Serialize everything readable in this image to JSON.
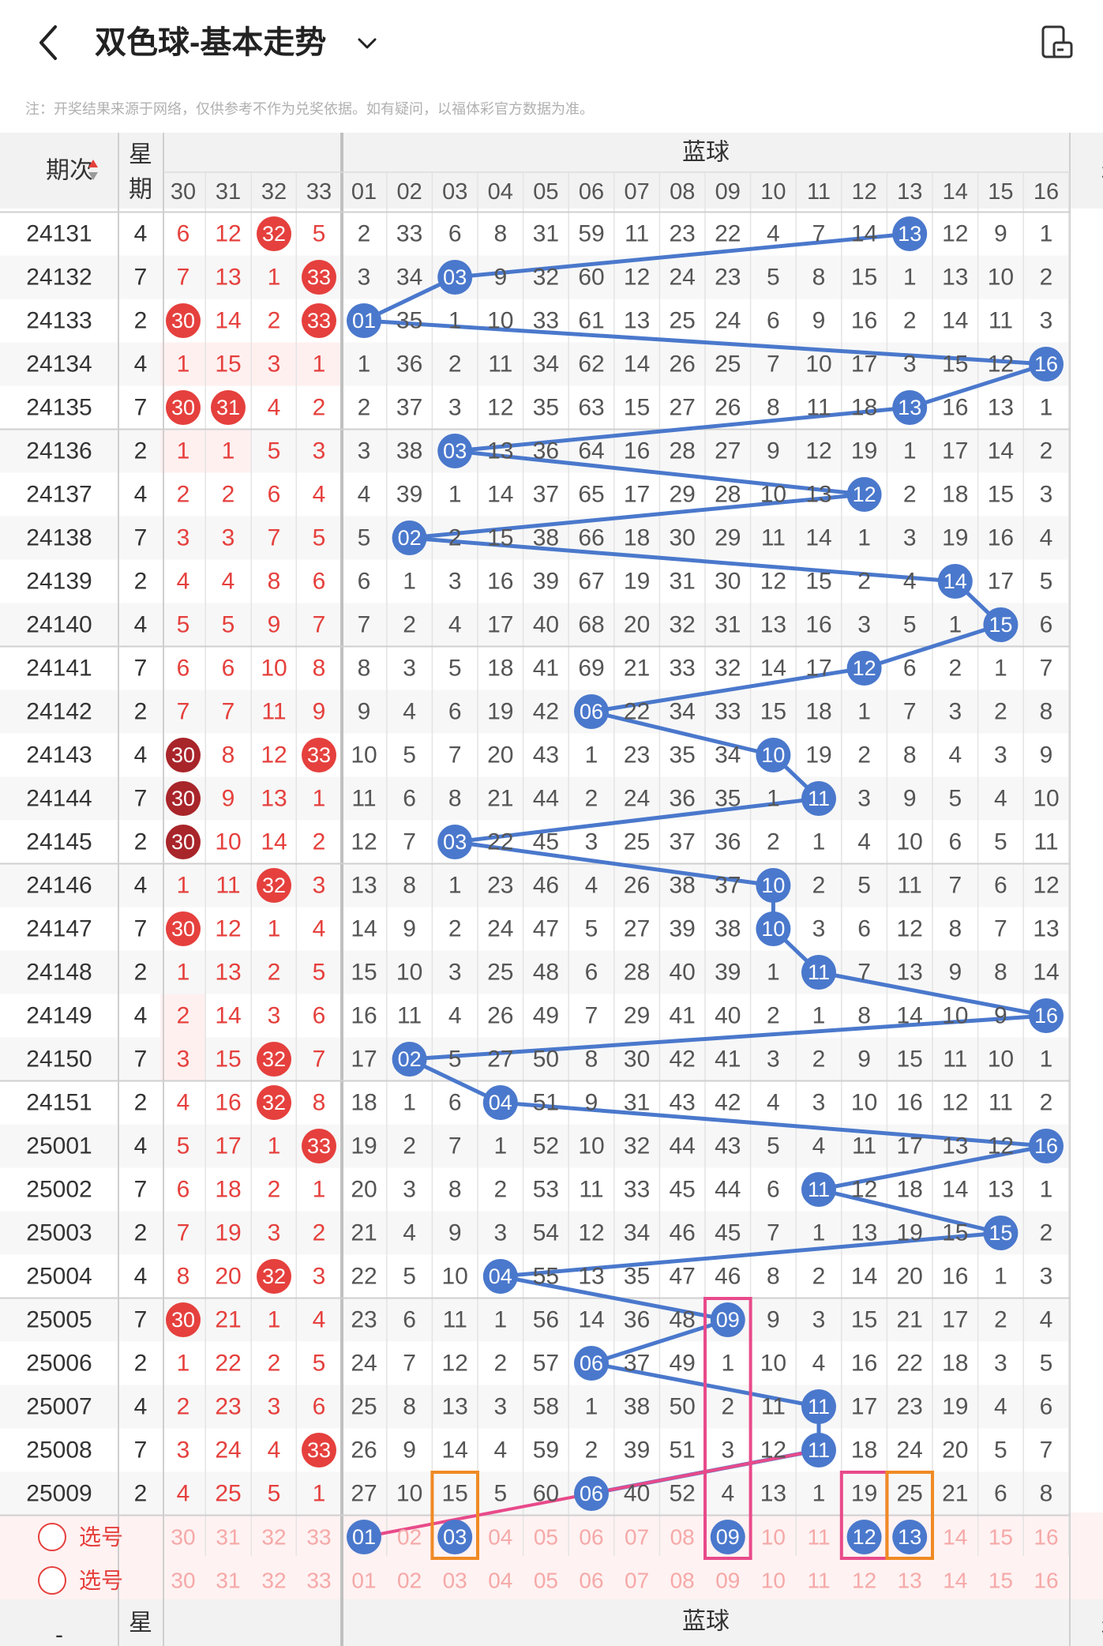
{
  "header": {
    "title": "双色球-基本走势",
    "back_icon": "chevron-left-icon",
    "dropdown_icon": "chevron-down-icon",
    "rotate_icon": "screen-rotate-icon"
  },
  "notice": "注：开奖结果来源于网络，仅供参考不作为兑奖依据。如有疑问，以福体彩官方数据为准。",
  "table": {
    "col_period": "期次",
    "col_week": "星期",
    "blue_section": "蓝球",
    "right_cut": "和",
    "red_cols": [
      "30",
      "31",
      "32",
      "33"
    ],
    "blue_cols": [
      "01",
      "02",
      "03",
      "04",
      "05",
      "06",
      "07",
      "08",
      "09",
      "10",
      "11",
      "12",
      "13",
      "14",
      "15",
      "16"
    ],
    "rows": [
      {
        "p": "24131",
        "w": "4",
        "r": [
          "6",
          "12",
          "32",
          "5"
        ],
        "rh": [
          0,
          0,
          1,
          0
        ],
        "b": [
          "2",
          "33",
          "6",
          "8",
          "31",
          "59",
          "11",
          "23",
          "22",
          "4",
          "7",
          "14",
          "13",
          "12",
          "9",
          "1"
        ],
        "bh": 13,
        "rm": [
          0,
          0,
          0,
          0
        ],
        "e": "1"
      },
      {
        "p": "24132",
        "w": "7",
        "r": [
          "7",
          "13",
          "1",
          "33"
        ],
        "rh": [
          0,
          0,
          0,
          1
        ],
        "b": [
          "3",
          "34",
          "03",
          "9",
          "32",
          "60",
          "12",
          "24",
          "23",
          "5",
          "8",
          "15",
          "1",
          "13",
          "10",
          "2"
        ],
        "bh": 3,
        "rm": [
          0,
          0,
          0,
          0
        ],
        "e": ""
      },
      {
        "p": "24133",
        "w": "2",
        "r": [
          "30",
          "14",
          "2",
          "33"
        ],
        "rh": [
          1,
          0,
          0,
          1
        ],
        "b": [
          "01",
          "35",
          "1",
          "10",
          "33",
          "61",
          "13",
          "25",
          "24",
          "6",
          "9",
          "16",
          "2",
          "14",
          "11",
          "3"
        ],
        "bh": 1,
        "rm": [
          0,
          0,
          0,
          0
        ],
        "e": "1"
      },
      {
        "p": "24134",
        "w": "4",
        "r": [
          "1",
          "15",
          "3",
          "1"
        ],
        "rh": [
          0,
          0,
          0,
          0
        ],
        "b": [
          "1",
          "36",
          "2",
          "11",
          "34",
          "62",
          "14",
          "26",
          "25",
          "7",
          "10",
          "17",
          "3",
          "15",
          "12",
          "16"
        ],
        "bh": 16,
        "rm": [
          1,
          1,
          1,
          1
        ],
        "e": ""
      },
      {
        "p": "24135",
        "w": "7",
        "r": [
          "30",
          "31",
          "4",
          "2"
        ],
        "rh": [
          1,
          1,
          0,
          0
        ],
        "b": [
          "2",
          "37",
          "3",
          "12",
          "35",
          "63",
          "15",
          "27",
          "26",
          "8",
          "11",
          "18",
          "13",
          "16",
          "13",
          "1"
        ],
        "bh": 13,
        "rm": [
          0,
          0,
          0,
          0
        ],
        "e": "1"
      },
      {
        "p": "24136",
        "w": "2",
        "r": [
          "1",
          "1",
          "5",
          "3"
        ],
        "rh": [
          0,
          0,
          0,
          0
        ],
        "b": [
          "3",
          "38",
          "03",
          "13",
          "36",
          "64",
          "16",
          "28",
          "27",
          "9",
          "12",
          "19",
          "1",
          "17",
          "14",
          "2"
        ],
        "bh": 3,
        "rm": [
          1,
          1,
          0,
          0
        ],
        "e": "1"
      },
      {
        "p": "24137",
        "w": "4",
        "r": [
          "2",
          "2",
          "6",
          "4"
        ],
        "rh": [
          0,
          0,
          0,
          0
        ],
        "b": [
          "4",
          "39",
          "1",
          "14",
          "37",
          "65",
          "17",
          "29",
          "28",
          "10",
          "13",
          "12",
          "2",
          "18",
          "15",
          "3"
        ],
        "bh": 12,
        "rm": [
          0,
          0,
          0,
          0
        ],
        "e": ""
      },
      {
        "p": "24138",
        "w": "7",
        "r": [
          "3",
          "3",
          "7",
          "5"
        ],
        "rh": [
          0,
          0,
          0,
          0
        ],
        "b": [
          "5",
          "02",
          "2",
          "15",
          "38",
          "66",
          "18",
          "30",
          "29",
          "11",
          "14",
          "1",
          "3",
          "19",
          "16",
          "4"
        ],
        "bh": 2,
        "rm": [
          0,
          0,
          0,
          0
        ],
        "e": ""
      },
      {
        "p": "24139",
        "w": "2",
        "r": [
          "4",
          "4",
          "8",
          "6"
        ],
        "rh": [
          0,
          0,
          0,
          0
        ],
        "b": [
          "6",
          "1",
          "3",
          "16",
          "39",
          "67",
          "19",
          "31",
          "30",
          "12",
          "15",
          "2",
          "4",
          "14",
          "17",
          "5"
        ],
        "bh": 14,
        "rm": [
          0,
          0,
          0,
          0
        ],
        "e": "1"
      },
      {
        "p": "24140",
        "w": "4",
        "r": [
          "5",
          "5",
          "9",
          "7"
        ],
        "rh": [
          0,
          0,
          0,
          0
        ],
        "b": [
          "7",
          "2",
          "4",
          "17",
          "40",
          "68",
          "20",
          "32",
          "31",
          "13",
          "16",
          "3",
          "5",
          "1",
          "15",
          "6"
        ],
        "bh": 15,
        "rm": [
          0,
          0,
          0,
          0
        ],
        "e": ""
      },
      {
        "p": "24141",
        "w": "7",
        "r": [
          "6",
          "6",
          "10",
          "8"
        ],
        "rh": [
          0,
          0,
          0,
          0
        ],
        "b": [
          "8",
          "3",
          "5",
          "18",
          "41",
          "69",
          "21",
          "33",
          "32",
          "14",
          "17",
          "12",
          "6",
          "2",
          "1",
          "7"
        ],
        "bh": 12,
        "rm": [
          0,
          0,
          0,
          0
        ],
        "e": ""
      },
      {
        "p": "24142",
        "w": "2",
        "r": [
          "7",
          "7",
          "11",
          "9"
        ],
        "rh": [
          0,
          0,
          0,
          0
        ],
        "b": [
          "9",
          "4",
          "6",
          "19",
          "42",
          "06",
          "22",
          "34",
          "33",
          "15",
          "18",
          "1",
          "7",
          "3",
          "2",
          "8"
        ],
        "bh": 6,
        "rm": [
          0,
          0,
          0,
          0
        ],
        "e": ""
      },
      {
        "p": "24143",
        "w": "4",
        "r": [
          "30",
          "8",
          "12",
          "33"
        ],
        "rh": [
          2,
          0,
          0,
          1
        ],
        "b": [
          "10",
          "5",
          "7",
          "20",
          "43",
          "1",
          "23",
          "35",
          "34",
          "10",
          "19",
          "2",
          "8",
          "4",
          "3",
          "9"
        ],
        "bh": 10,
        "rm": [
          0,
          0,
          0,
          0
        ],
        "e": "1"
      },
      {
        "p": "24144",
        "w": "7",
        "r": [
          "30",
          "9",
          "13",
          "1"
        ],
        "rh": [
          2,
          0,
          0,
          0
        ],
        "b": [
          "11",
          "6",
          "8",
          "21",
          "44",
          "2",
          "24",
          "36",
          "35",
          "1",
          "11",
          "3",
          "9",
          "5",
          "4",
          "10"
        ],
        "bh": 11,
        "rm": [
          0,
          0,
          0,
          0
        ],
        "e": ""
      },
      {
        "p": "24145",
        "w": "2",
        "r": [
          "30",
          "10",
          "14",
          "2"
        ],
        "rh": [
          2,
          0,
          0,
          0
        ],
        "b": [
          "12",
          "7",
          "03",
          "22",
          "45",
          "3",
          "25",
          "37",
          "36",
          "2",
          "1",
          "4",
          "10",
          "6",
          "5",
          "11"
        ],
        "bh": 3,
        "rm": [
          0,
          0,
          0,
          0
        ],
        "e": ""
      },
      {
        "p": "24146",
        "w": "4",
        "r": [
          "1",
          "11",
          "32",
          "3"
        ],
        "rh": [
          0,
          0,
          1,
          0
        ],
        "b": [
          "13",
          "8",
          "1",
          "23",
          "46",
          "4",
          "26",
          "38",
          "37",
          "10",
          "2",
          "5",
          "11",
          "7",
          "6",
          "12"
        ],
        "bh": 10,
        "rm": [
          0,
          0,
          0,
          0
        ],
        "e": "1"
      },
      {
        "p": "24147",
        "w": "7",
        "r": [
          "30",
          "12",
          "1",
          "4"
        ],
        "rh": [
          1,
          0,
          0,
          0
        ],
        "b": [
          "14",
          "9",
          "2",
          "24",
          "47",
          "5",
          "27",
          "39",
          "38",
          "10",
          "3",
          "6",
          "12",
          "8",
          "7",
          "13"
        ],
        "bh": 10,
        "rm": [
          0,
          0,
          0,
          0
        ],
        "e": ""
      },
      {
        "p": "24148",
        "w": "2",
        "r": [
          "1",
          "13",
          "2",
          "5"
        ],
        "rh": [
          0,
          0,
          0,
          0
        ],
        "b": [
          "15",
          "10",
          "3",
          "25",
          "48",
          "6",
          "28",
          "40",
          "39",
          "1",
          "11",
          "7",
          "13",
          "9",
          "8",
          "14"
        ],
        "bh": 11,
        "rm": [
          0,
          0,
          0,
          0
        ],
        "e": ""
      },
      {
        "p": "24149",
        "w": "4",
        "r": [
          "2",
          "14",
          "3",
          "6"
        ],
        "rh": [
          0,
          0,
          0,
          0
        ],
        "b": [
          "16",
          "11",
          "4",
          "26",
          "49",
          "7",
          "29",
          "41",
          "40",
          "2",
          "1",
          "8",
          "14",
          "10",
          "9",
          "16"
        ],
        "bh": 16,
        "rm": [
          1,
          0,
          0,
          0
        ],
        "e": ""
      },
      {
        "p": "24150",
        "w": "7",
        "r": [
          "3",
          "15",
          "32",
          "7"
        ],
        "rh": [
          0,
          0,
          1,
          0
        ],
        "b": [
          "17",
          "02",
          "5",
          "27",
          "50",
          "8",
          "30",
          "42",
          "41",
          "3",
          "2",
          "9",
          "15",
          "11",
          "10",
          "1"
        ],
        "bh": 2,
        "rm": [
          1,
          0,
          0,
          0
        ],
        "e": "1"
      },
      {
        "p": "24151",
        "w": "2",
        "r": [
          "4",
          "16",
          "32",
          "8"
        ],
        "rh": [
          0,
          0,
          1,
          0
        ],
        "b": [
          "18",
          "1",
          "6",
          "04",
          "51",
          "9",
          "31",
          "43",
          "42",
          "4",
          "3",
          "10",
          "16",
          "12",
          "11",
          "2"
        ],
        "bh": 4,
        "rm": [
          0,
          0,
          0,
          0
        ],
        "e": ""
      },
      {
        "p": "25001",
        "w": "4",
        "r": [
          "5",
          "17",
          "1",
          "33"
        ],
        "rh": [
          0,
          0,
          0,
          1
        ],
        "b": [
          "19",
          "2",
          "7",
          "1",
          "52",
          "10",
          "32",
          "44",
          "43",
          "5",
          "4",
          "11",
          "17",
          "13",
          "12",
          "16"
        ],
        "bh": 16,
        "rm": [
          0,
          0,
          0,
          0
        ],
        "e": "1"
      },
      {
        "p": "25002",
        "w": "7",
        "r": [
          "6",
          "18",
          "2",
          "1"
        ],
        "rh": [
          0,
          0,
          0,
          0
        ],
        "b": [
          "20",
          "3",
          "8",
          "2",
          "53",
          "11",
          "33",
          "45",
          "44",
          "6",
          "11",
          "12",
          "18",
          "14",
          "13",
          "1"
        ],
        "bh": 11,
        "rm": [
          0,
          0,
          0,
          0
        ],
        "e": ""
      },
      {
        "p": "25003",
        "w": "2",
        "r": [
          "7",
          "19",
          "3",
          "2"
        ],
        "rh": [
          0,
          0,
          0,
          0
        ],
        "b": [
          "21",
          "4",
          "9",
          "3",
          "54",
          "12",
          "34",
          "46",
          "45",
          "7",
          "1",
          "13",
          "19",
          "15",
          "15",
          "2"
        ],
        "bh": 15,
        "rm": [
          0,
          0,
          0,
          0
        ],
        "e": ""
      },
      {
        "p": "25004",
        "w": "4",
        "r": [
          "8",
          "20",
          "32",
          "3"
        ],
        "rh": [
          0,
          0,
          1,
          0
        ],
        "b": [
          "22",
          "5",
          "10",
          "04",
          "55",
          "13",
          "35",
          "47",
          "46",
          "8",
          "2",
          "14",
          "20",
          "16",
          "1",
          "3"
        ],
        "bh": 4,
        "rm": [
          0,
          0,
          0,
          0
        ],
        "e": ""
      },
      {
        "p": "25005",
        "w": "7",
        "r": [
          "30",
          "21",
          "1",
          "4"
        ],
        "rh": [
          1,
          0,
          0,
          0
        ],
        "b": [
          "23",
          "6",
          "11",
          "1",
          "56",
          "14",
          "36",
          "48",
          "09",
          "9",
          "3",
          "15",
          "21",
          "17",
          "2",
          "4"
        ],
        "bh": 9,
        "rm": [
          0,
          0,
          0,
          0
        ],
        "e": "1"
      },
      {
        "p": "25006",
        "w": "2",
        "r": [
          "1",
          "22",
          "2",
          "5"
        ],
        "rh": [
          0,
          0,
          0,
          0
        ],
        "b": [
          "24",
          "7",
          "12",
          "2",
          "57",
          "06",
          "37",
          "49",
          "1",
          "10",
          "4",
          "16",
          "22",
          "18",
          "3",
          "5"
        ],
        "bh": 6,
        "rm": [
          0,
          0,
          0,
          0
        ],
        "e": ""
      },
      {
        "p": "25007",
        "w": "4",
        "r": [
          "2",
          "23",
          "3",
          "6"
        ],
        "rh": [
          0,
          0,
          0,
          0
        ],
        "b": [
          "25",
          "8",
          "13",
          "3",
          "58",
          "1",
          "38",
          "50",
          "2",
          "11",
          "11",
          "17",
          "23",
          "19",
          "4",
          "6"
        ],
        "bh": 11,
        "rm": [
          0,
          0,
          0,
          0
        ],
        "e": ""
      },
      {
        "p": "25008",
        "w": "7",
        "r": [
          "3",
          "24",
          "4",
          "33"
        ],
        "rh": [
          0,
          0,
          0,
          1
        ],
        "b": [
          "26",
          "9",
          "14",
          "4",
          "59",
          "2",
          "39",
          "51",
          "3",
          "12",
          "11",
          "18",
          "24",
          "20",
          "5",
          "7"
        ],
        "bh": 11,
        "rm": [
          0,
          0,
          0,
          0
        ],
        "e": "1"
      },
      {
        "p": "25009",
        "w": "2",
        "r": [
          "4",
          "25",
          "5",
          "1"
        ],
        "rh": [
          0,
          0,
          0,
          0
        ],
        "b": [
          "27",
          "10",
          "15",
          "5",
          "60",
          "06",
          "40",
          "52",
          "4",
          "13",
          "1",
          "19",
          "25",
          "21",
          "6",
          "8"
        ],
        "bh": 6,
        "rm": [
          0,
          0,
          0,
          0
        ],
        "e": ""
      }
    ],
    "pick_label": "选号",
    "pick_red": [
      "30",
      "31",
      "32",
      "33"
    ],
    "pick_blue": [
      "01",
      "02",
      "03",
      "04",
      "05",
      "06",
      "07",
      "08",
      "09",
      "10",
      "11",
      "12",
      "13",
      "14",
      "15",
      "16"
    ],
    "pick1_selected": [
      1,
      3,
      9,
      12,
      13
    ],
    "bottom_dash": "-"
  }
}
